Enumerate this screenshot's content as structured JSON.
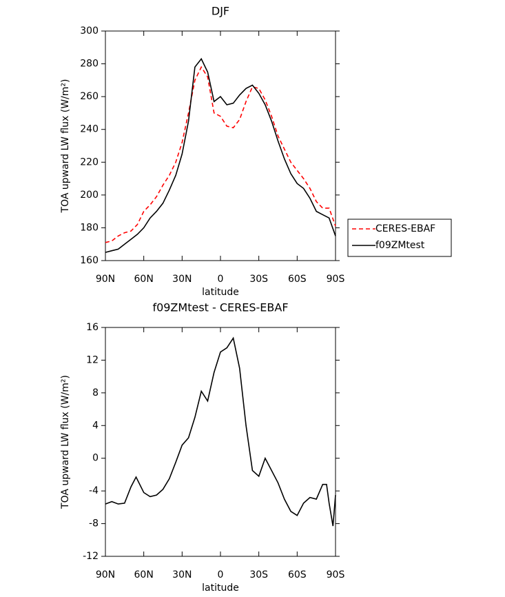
{
  "chart_data": [
    {
      "type": "line",
      "title": "DJF",
      "xlabel": "latitude",
      "ylabel": "TOA upward LW flux (W/m²)",
      "x": [
        90,
        85,
        80,
        75,
        70,
        65,
        60,
        55,
        50,
        45,
        40,
        35,
        30,
        25,
        20,
        15,
        10,
        5,
        0,
        -5,
        -10,
        -15,
        -20,
        -25,
        -30,
        -35,
        -40,
        -45,
        -50,
        -55,
        -60,
        -65,
        -70,
        -75,
        -80,
        -85,
        -90
      ],
      "series": [
        {
          "name": "CERES-EBAF",
          "color": "#ff0000",
          "linestyle": "dashed",
          "values": [
            171,
            172,
            175,
            177,
            178,
            182,
            190,
            194,
            199,
            206,
            212,
            220,
            232,
            250,
            270,
            278,
            272,
            250,
            248,
            242,
            241,
            246,
            257,
            266,
            265,
            258,
            248,
            236,
            228,
            220,
            215,
            210,
            204,
            196,
            192,
            192,
            181
          ]
        },
        {
          "name": "f09ZMtest",
          "color": "#000000",
          "linestyle": "solid",
          "values": [
            165,
            166,
            167,
            170,
            173,
            176,
            180,
            186,
            190,
            195,
            203,
            212,
            225,
            245,
            278,
            283,
            275,
            257,
            260,
            255,
            256,
            261,
            265,
            267,
            262,
            255,
            245,
            233,
            222,
            213,
            207,
            204,
            198,
            190,
            188,
            186,
            175
          ]
        }
      ],
      "xlim": [
        90,
        -90
      ],
      "xticks": [
        {
          "value": 90,
          "label": "90N"
        },
        {
          "value": 60,
          "label": "60N"
        },
        {
          "value": 30,
          "label": "30N"
        },
        0,
        {
          "value": -30,
          "label": "30S"
        },
        {
          "value": -60,
          "label": "60S"
        },
        {
          "value": -90,
          "label": "90S"
        }
      ],
      "ylim": [
        160,
        300
      ],
      "yticks": [
        160,
        180,
        200,
        220,
        240,
        260,
        280,
        300
      ],
      "legend": "right"
    },
    {
      "type": "line",
      "title": "f09ZMtest - CERES-EBAF",
      "xlabel": "latitude",
      "ylabel": "TOA upward LW flux (W/m²)",
      "x": [
        90,
        85,
        80,
        75,
        70,
        66,
        60,
        55,
        50,
        45,
        40,
        35,
        30,
        25,
        20,
        15,
        10,
        5,
        0,
        -5,
        -10,
        -15,
        -20,
        -25,
        -30,
        -35,
        -40,
        -45,
        -50,
        -55,
        -60,
        -65,
        -70,
        -75,
        -80,
        -83,
        -85,
        -88,
        -90
      ],
      "values": [
        -5.6,
        -5.3,
        -5.6,
        -5.5,
        -3.5,
        -2.3,
        -4.2,
        -4.7,
        -4.5,
        -3.8,
        -2.5,
        -0.5,
        1.6,
        2.5,
        5,
        8.2,
        7,
        10.5,
        13,
        13.5,
        14.7,
        11,
        4,
        -1.5,
        -2.2,
        0,
        -1.5,
        -3,
        -5,
        -6.5,
        -7,
        -5.5,
        -4.8,
        -5,
        -3.2,
        -3.2,
        -5.5,
        -8.3,
        -4.5
      ],
      "color": "#000000",
      "xlim": [
        90,
        -90
      ],
      "xticks": [
        {
          "value": 90,
          "label": "90N"
        },
        {
          "value": 60,
          "label": "60N"
        },
        {
          "value": 30,
          "label": "30N"
        },
        0,
        {
          "value": -30,
          "label": "30S"
        },
        {
          "value": -60,
          "label": "60S"
        },
        {
          "value": -90,
          "label": "90S"
        }
      ],
      "ylim": [
        -12,
        16
      ],
      "yticks": [
        -12,
        -8,
        -4,
        0,
        4,
        8,
        12,
        16
      ]
    }
  ]
}
